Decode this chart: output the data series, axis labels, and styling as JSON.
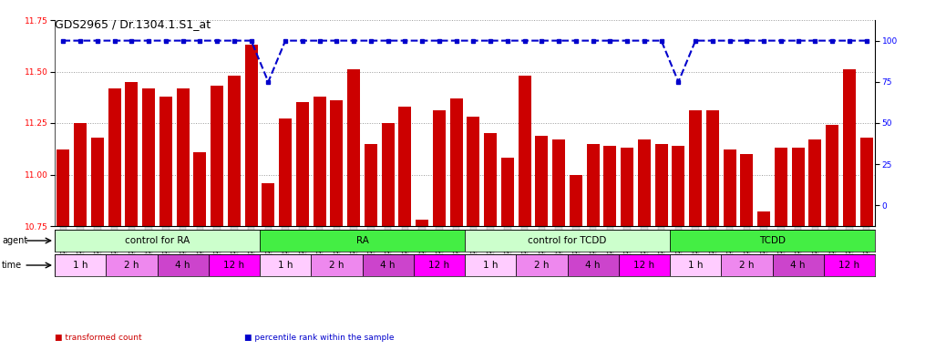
{
  "title": "GDS2965 / Dr.1304.1.S1_at",
  "samples": [
    "GSM228874",
    "GSM228875",
    "GSM228876",
    "GSM228880",
    "GSM228881",
    "GSM228882",
    "GSM228886",
    "GSM228887",
    "GSM228888",
    "GSM228892",
    "GSM228893",
    "GSM228894",
    "GSM228871",
    "GSM228872",
    "GSM228873",
    "GSM228877",
    "GSM228878",
    "GSM228879",
    "GSM228883",
    "GSM228884",
    "GSM228885",
    "GSM228889",
    "GSM228890",
    "GSM228891",
    "GSM228898",
    "GSM228899",
    "GSM228900",
    "GSM228905",
    "GSM228906",
    "GSM228907",
    "GSM228911",
    "GSM228912",
    "GSM228913",
    "GSM228917",
    "GSM228918",
    "GSM228919",
    "GSM228895",
    "GSM228896",
    "GSM228897",
    "GSM228901",
    "GSM228903",
    "GSM228904",
    "GSM228908",
    "GSM228909",
    "GSM228910",
    "GSM228914",
    "GSM228915",
    "GSM228916"
  ],
  "bar_values": [
    11.12,
    11.25,
    11.18,
    11.42,
    11.45,
    11.42,
    11.38,
    11.42,
    11.11,
    11.43,
    11.48,
    11.63,
    10.96,
    11.27,
    11.35,
    11.38,
    11.36,
    11.51,
    11.15,
    11.25,
    11.33,
    10.78,
    11.31,
    11.37,
    11.28,
    11.2,
    11.08,
    11.48,
    11.19,
    11.17,
    11.0,
    11.15,
    11.14,
    11.13,
    11.17,
    11.15,
    11.14,
    11.31,
    11.31,
    11.12,
    11.1,
    10.82,
    11.13,
    11.13,
    11.17,
    11.24,
    11.51,
    11.18
  ],
  "percentile_values": [
    100,
    100,
    100,
    100,
    100,
    100,
    100,
    100,
    100,
    100,
    100,
    100,
    75,
    100,
    100,
    100,
    100,
    100,
    100,
    100,
    100,
    100,
    100,
    100,
    100,
    100,
    100,
    100,
    100,
    100,
    100,
    100,
    100,
    100,
    100,
    100,
    75,
    100,
    100,
    100,
    100,
    100,
    100,
    100,
    100,
    100,
    100,
    100
  ],
  "ylim": [
    10.75,
    11.75
  ],
  "yticks_left": [
    10.75,
    11.0,
    11.25,
    11.5,
    11.75
  ],
  "yticks_right": [
    0,
    25,
    50,
    75,
    100
  ],
  "right_ylim": [
    -12.5,
    112.5
  ],
  "bar_color": "#CC0000",
  "percentile_color": "#0000CC",
  "agent_groups": [
    {
      "label": "control for RA",
      "start": 0,
      "end": 12,
      "color": "#CCFFCC"
    },
    {
      "label": "RA",
      "start": 12,
      "end": 24,
      "color": "#44EE44"
    },
    {
      "label": "control for TCDD",
      "start": 24,
      "end": 36,
      "color": "#CCFFCC"
    },
    {
      "label": "TCDD",
      "start": 36,
      "end": 48,
      "color": "#44EE44"
    }
  ],
  "time_groups": [
    {
      "label": "1 h",
      "start": 0,
      "end": 3,
      "color": "#FFCCFF"
    },
    {
      "label": "2 h",
      "start": 3,
      "end": 6,
      "color": "#EE88EE"
    },
    {
      "label": "4 h",
      "start": 6,
      "end": 9,
      "color": "#CC44CC"
    },
    {
      "label": "12 h",
      "start": 9,
      "end": 12,
      "color": "#FF00FF"
    },
    {
      "label": "1 h",
      "start": 12,
      "end": 15,
      "color": "#FFCCFF"
    },
    {
      "label": "2 h",
      "start": 15,
      "end": 18,
      "color": "#EE88EE"
    },
    {
      "label": "4 h",
      "start": 18,
      "end": 21,
      "color": "#CC44CC"
    },
    {
      "label": "12 h",
      "start": 21,
      "end": 24,
      "color": "#FF00FF"
    },
    {
      "label": "1 h",
      "start": 24,
      "end": 27,
      "color": "#FFCCFF"
    },
    {
      "label": "2 h",
      "start": 27,
      "end": 30,
      "color": "#EE88EE"
    },
    {
      "label": "4 h",
      "start": 30,
      "end": 33,
      "color": "#CC44CC"
    },
    {
      "label": "12 h",
      "start": 33,
      "end": 36,
      "color": "#FF00FF"
    },
    {
      "label": "1 h",
      "start": 36,
      "end": 39,
      "color": "#FFCCFF"
    },
    {
      "label": "2 h",
      "start": 39,
      "end": 42,
      "color": "#EE88EE"
    },
    {
      "label": "4 h",
      "start": 42,
      "end": 45,
      "color": "#CC44CC"
    },
    {
      "label": "12 h",
      "start": 45,
      "end": 48,
      "color": "#FF00FF"
    }
  ],
  "bg_color": "#FFFFFF",
  "grid_color": "#999999",
  "legend_items": [
    {
      "label": "transformed count",
      "color": "#CC0000"
    },
    {
      "label": "percentile rank within the sample",
      "color": "#0000CC"
    }
  ],
  "title_fontsize": 9,
  "tick_fontsize": 6.5,
  "sample_fontsize": 5.0,
  "row_fontsize": 7.5
}
